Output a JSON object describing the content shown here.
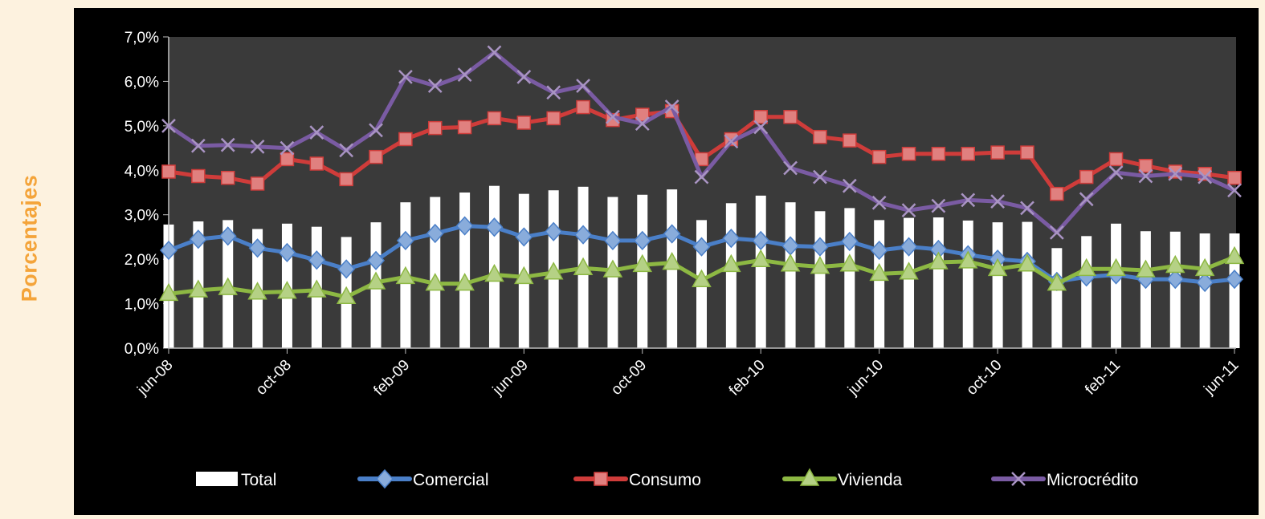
{
  "chart_data": {
    "type": "bar",
    "ylabel": "Porcentajes",
    "ylim": [
      0,
      0.07
    ],
    "y_ticks": [
      "0,0%",
      "1,0%",
      "2,0%",
      "3,0%",
      "4,0%",
      "5,0%",
      "6,0%",
      "7,0%"
    ],
    "x_tick_labels": [
      "jun-08",
      "oct-08",
      "feb-09",
      "jun-09",
      "oct-09",
      "feb-10",
      "jun-10",
      "oct-10",
      "feb-11",
      "jun-11"
    ],
    "categories": [
      "jun-08",
      "jul-08",
      "ago-08",
      "sep-08",
      "oct-08",
      "nov-08",
      "dic-08",
      "ene-09",
      "feb-09",
      "mar-09",
      "abr-09",
      "may-09",
      "jun-09",
      "jul-09",
      "ago-09",
      "sep-09",
      "oct-09",
      "nov-09",
      "dic-09",
      "ene-10",
      "feb-10",
      "mar-10",
      "abr-10",
      "may-10",
      "jun-10",
      "jul-10",
      "ago-10",
      "sep-10",
      "oct-10",
      "nov-10",
      "dic-10",
      "ene-11",
      "feb-11",
      "mar-11",
      "abr-11",
      "may-11",
      "jun-11"
    ],
    "series": [
      {
        "name": "Total",
        "type": "bar",
        "color": "#ffffff",
        "values": [
          2.78,
          2.85,
          2.88,
          2.68,
          2.8,
          2.73,
          2.5,
          2.83,
          3.28,
          3.4,
          3.5,
          3.65,
          3.47,
          3.55,
          3.63,
          3.4,
          3.45,
          3.57,
          2.88,
          3.26,
          3.43,
          3.28,
          3.08,
          3.15,
          2.88,
          2.93,
          2.94,
          2.87,
          2.83,
          2.84,
          2.25,
          2.52,
          2.8,
          2.63,
          2.62,
          2.58,
          2.58
        ]
      },
      {
        "name": "Comercial",
        "type": "line",
        "color": "#4a7fc8",
        "marker": "diamond",
        "values": [
          2.2,
          2.45,
          2.52,
          2.25,
          2.15,
          1.98,
          1.78,
          1.97,
          2.42,
          2.58,
          2.75,
          2.72,
          2.5,
          2.62,
          2.55,
          2.42,
          2.42,
          2.57,
          2.28,
          2.47,
          2.42,
          2.3,
          2.28,
          2.4,
          2.2,
          2.28,
          2.22,
          2.1,
          2.0,
          1.95,
          1.5,
          1.6,
          1.65,
          1.55,
          1.55,
          1.48,
          1.55
        ]
      },
      {
        "name": "Consumo",
        "type": "line",
        "color": "#cf3c3a",
        "marker": "square",
        "values": [
          3.97,
          3.87,
          3.83,
          3.7,
          4.25,
          4.15,
          3.8,
          4.3,
          4.7,
          4.95,
          4.97,
          5.17,
          5.07,
          5.17,
          5.42,
          5.13,
          5.25,
          5.33,
          4.25,
          4.7,
          5.2,
          5.2,
          4.75,
          4.67,
          4.3,
          4.37,
          4.37,
          4.37,
          4.4,
          4.4,
          3.47,
          3.85,
          4.25,
          4.1,
          3.97,
          3.92,
          3.83
        ]
      },
      {
        "name": "Vivienda",
        "type": "line",
        "color": "#8db843",
        "marker": "triangle",
        "values": [
          1.22,
          1.3,
          1.35,
          1.25,
          1.27,
          1.3,
          1.15,
          1.48,
          1.6,
          1.45,
          1.45,
          1.65,
          1.6,
          1.7,
          1.8,
          1.75,
          1.87,
          1.92,
          1.53,
          1.87,
          1.98,
          1.88,
          1.83,
          1.88,
          1.67,
          1.7,
          1.93,
          1.95,
          1.78,
          1.88,
          1.45,
          1.78,
          1.78,
          1.75,
          1.85,
          1.78,
          2.05
        ]
      },
      {
        "name": "Microcrédito",
        "type": "line",
        "color": "#7a5ba3",
        "marker": "x",
        "values": [
          5.0,
          4.55,
          4.57,
          4.53,
          4.5,
          4.85,
          4.45,
          4.9,
          6.1,
          5.9,
          6.15,
          6.65,
          6.1,
          5.75,
          5.9,
          5.2,
          5.05,
          5.43,
          3.85,
          4.65,
          4.97,
          4.05,
          3.85,
          3.65,
          3.27,
          3.1,
          3.2,
          3.33,
          3.3,
          3.15,
          2.6,
          3.35,
          3.95,
          3.87,
          3.92,
          3.85,
          3.55
        ]
      }
    ],
    "legend_position": "bottom",
    "grid": false,
    "plot_background": "#3a3a3a"
  }
}
